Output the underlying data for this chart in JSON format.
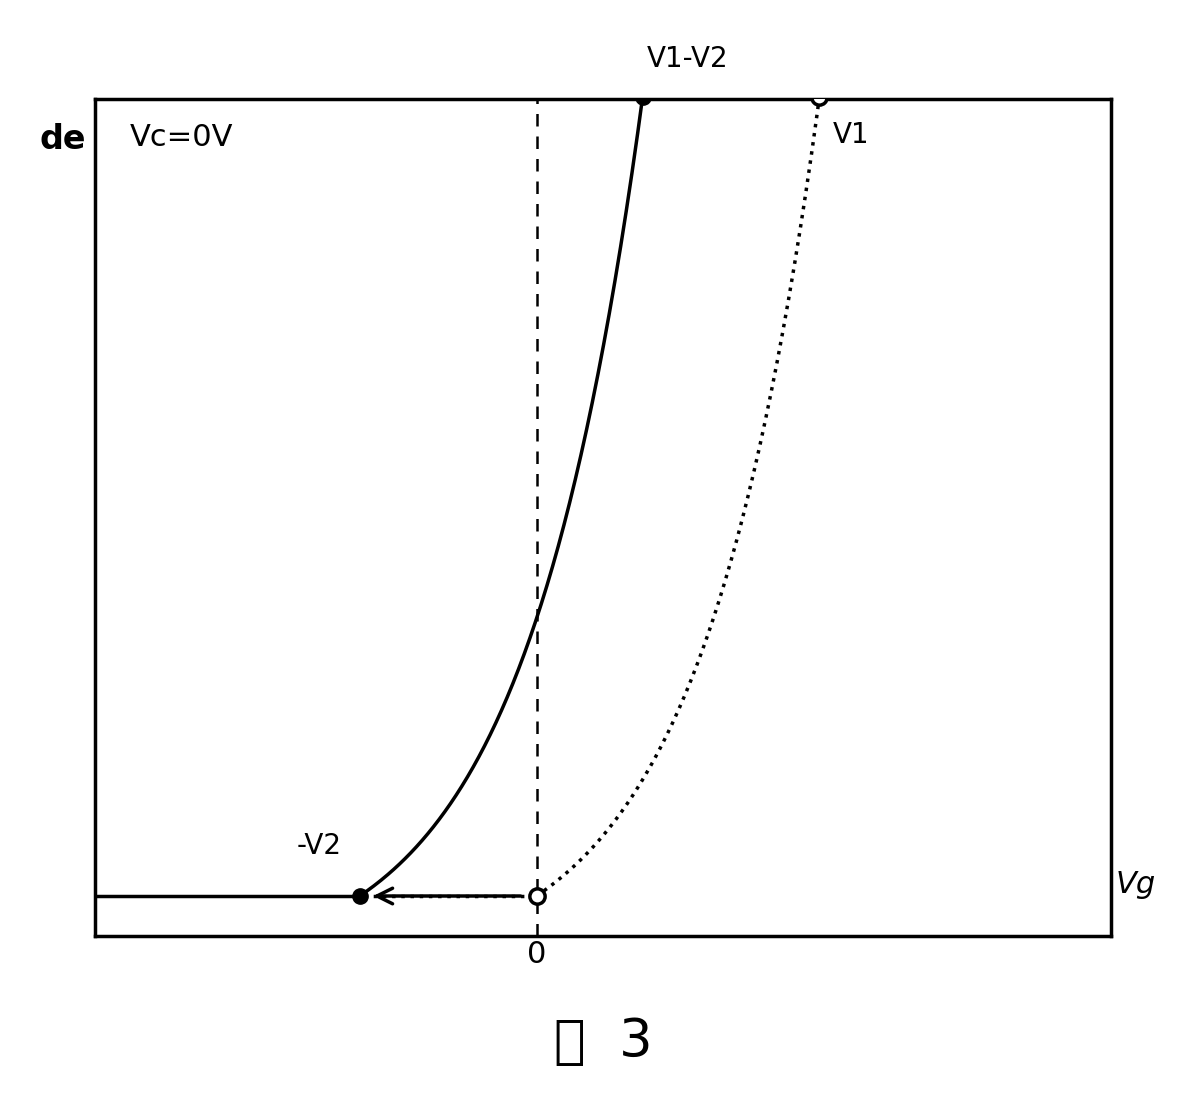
{
  "title": "图  3",
  "annotation_vc": "Vc=0V",
  "ylabel_partial": "de",
  "xlabel": "Vg",
  "label_zero": "0",
  "label_neg_v2": "-V2",
  "label_v1_minus_v2": "V1-V2",
  "label_v1": "V1",
  "background_color": "#ffffff",
  "x_min": -5.0,
  "x_max": 6.5,
  "y_min": 0.0,
  "y_max": 10.0,
  "k": 0.75,
  "x_neg_v2": -2.0,
  "x_origin": 0.0,
  "x_v1_v2": 1.2,
  "x_v1": 3.2,
  "x_top": 3.8,
  "dotted_dot_size": 8,
  "lw": 2.5
}
